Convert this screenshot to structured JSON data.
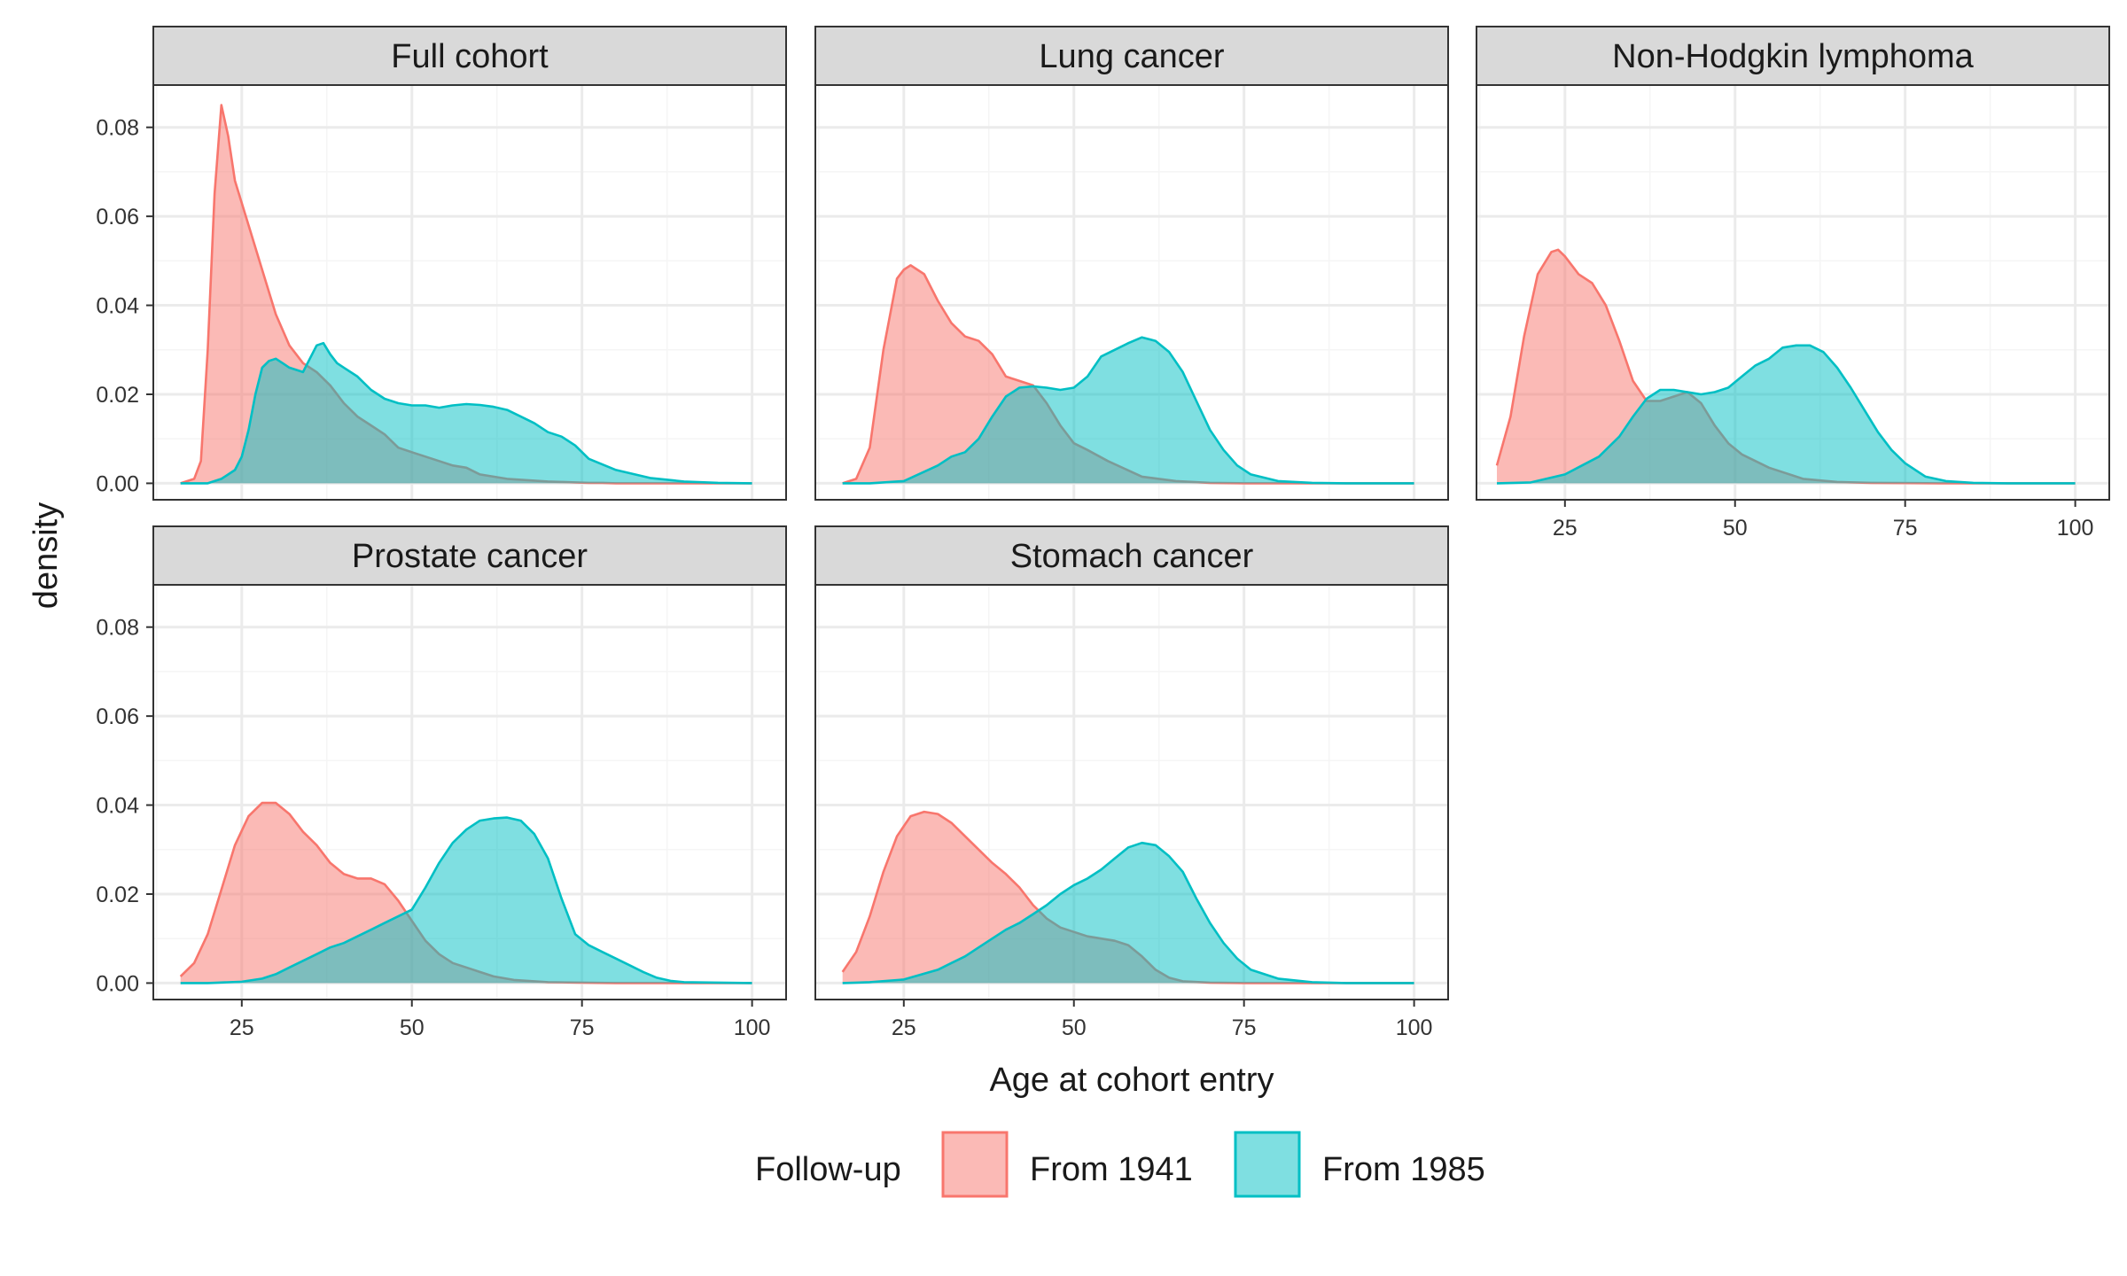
{
  "chart_data": {
    "type": "area",
    "facets": [
      {
        "title": "Full cohort",
        "series": [
          {
            "name": "From 1941",
            "x": [
              16,
              18,
              19,
              20,
              21,
              22,
              23,
              24,
              25,
              26,
              28,
              30,
              32,
              34,
              36,
              38,
              40,
              42,
              44,
              46,
              48,
              50,
              52,
              54,
              56,
              58,
              60,
              62,
              64,
              66,
              68,
              70,
              72,
              74,
              76,
              78,
              80,
              85,
              90,
              100
            ],
            "y": [
              0,
              0.001,
              0.005,
              0.03,
              0.065,
              0.085,
              0.078,
              0.068,
              0.063,
              0.058,
              0.048,
              0.038,
              0.031,
              0.027,
              0.025,
              0.022,
              0.018,
              0.015,
              0.013,
              0.011,
              0.008,
              0.007,
              0.006,
              0.005,
              0.004,
              0.0035,
              0.002,
              0.0015,
              0.001,
              0.0008,
              0.0006,
              0.0004,
              0.0003,
              0.0002,
              0.0001,
              0.0001,
              0,
              0,
              0,
              0
            ]
          },
          {
            "name": "From 1985",
            "x": [
              16,
              20,
              22,
              24,
              25,
              26,
              27,
              28,
              29,
              30,
              31,
              32,
              34,
              35,
              36,
              37,
              38,
              39,
              40,
              42,
              44,
              46,
              48,
              50,
              52,
              54,
              56,
              58,
              60,
              62,
              64,
              66,
              68,
              70,
              72,
              74,
              76,
              80,
              85,
              90,
              95,
              100
            ],
            "y": [
              0,
              0,
              0.001,
              0.003,
              0.006,
              0.012,
              0.02,
              0.026,
              0.0275,
              0.028,
              0.027,
              0.026,
              0.025,
              0.028,
              0.031,
              0.0315,
              0.029,
              0.027,
              0.026,
              0.024,
              0.021,
              0.019,
              0.018,
              0.0175,
              0.0175,
              0.017,
              0.0175,
              0.0178,
              0.0176,
              0.0172,
              0.0165,
              0.015,
              0.0135,
              0.0115,
              0.0105,
              0.0085,
              0.0055,
              0.003,
              0.0012,
              0.0004,
              0.0001,
              0
            ]
          }
        ]
      },
      {
        "title": "Lung cancer",
        "series": [
          {
            "name": "From 1941",
            "x": [
              16,
              18,
              20,
              22,
              24,
              25,
              26,
              28,
              30,
              32,
              34,
              36,
              38,
              40,
              42,
              44,
              46,
              48,
              50,
              52,
              55,
              60,
              65,
              70,
              75,
              80,
              85,
              90,
              100
            ],
            "y": [
              0,
              0.001,
              0.008,
              0.03,
              0.046,
              0.048,
              0.049,
              0.047,
              0.041,
              0.036,
              0.033,
              0.032,
              0.029,
              0.024,
              0.023,
              0.022,
              0.018,
              0.013,
              0.009,
              0.0075,
              0.005,
              0.0015,
              0.0005,
              0.0001,
              0,
              0,
              0,
              0,
              0
            ]
          },
          {
            "name": "From 1985",
            "x": [
              16,
              20,
              25,
              30,
              32,
              34,
              36,
              38,
              40,
              42,
              44,
              46,
              48,
              50,
              52,
              54,
              56,
              58,
              60,
              62,
              64,
              66,
              68,
              70,
              72,
              74,
              76,
              80,
              85,
              90,
              100
            ],
            "y": [
              0,
              0,
              0.0005,
              0.004,
              0.006,
              0.007,
              0.01,
              0.015,
              0.0195,
              0.0215,
              0.0218,
              0.0215,
              0.021,
              0.0215,
              0.024,
              0.0285,
              0.03,
              0.0315,
              0.0328,
              0.032,
              0.0295,
              0.025,
              0.0185,
              0.012,
              0.0075,
              0.004,
              0.002,
              0.0005,
              0.0001,
              0,
              0
            ]
          }
        ]
      },
      {
        "title": "Non-Hodgkin lymphoma",
        "series": [
          {
            "name": "From 1941",
            "x": [
              15,
              17,
              19,
              21,
              23,
              24,
              25,
              27,
              29,
              31,
              33,
              35,
              37,
              39,
              41,
              43,
              45,
              47,
              49,
              51,
              53,
              55,
              60,
              65,
              70,
              80,
              90,
              100
            ],
            "y": [
              0.004,
              0.015,
              0.033,
              0.047,
              0.052,
              0.0525,
              0.051,
              0.047,
              0.045,
              0.04,
              0.032,
              0.023,
              0.0185,
              0.0185,
              0.0195,
              0.0205,
              0.018,
              0.013,
              0.009,
              0.0065,
              0.005,
              0.0035,
              0.001,
              0.0003,
              0.0001,
              0,
              0,
              0
            ]
          },
          {
            "name": "From 1985",
            "x": [
              15,
              20,
              25,
              30,
              33,
              35,
              37,
              39,
              41,
              43,
              45,
              47,
              49,
              51,
              53,
              55,
              57,
              59,
              61,
              63,
              65,
              67,
              69,
              71,
              73,
              75,
              78,
              81,
              85,
              90,
              100
            ],
            "y": [
              0,
              0.0002,
              0.002,
              0.006,
              0.0105,
              0.015,
              0.019,
              0.021,
              0.021,
              0.0205,
              0.02,
              0.0205,
              0.0215,
              0.024,
              0.0265,
              0.028,
              0.0305,
              0.031,
              0.031,
              0.0295,
              0.026,
              0.0215,
              0.0165,
              0.0115,
              0.0075,
              0.0045,
              0.0015,
              0.0005,
              0.0001,
              0,
              0
            ]
          }
        ]
      },
      {
        "title": "Prostate cancer",
        "series": [
          {
            "name": "From 1941",
            "x": [
              16,
              18,
              20,
              22,
              24,
              26,
              28,
              30,
              32,
              34,
              36,
              38,
              40,
              42,
              44,
              46,
              48,
              50,
              52,
              54,
              56,
              58,
              60,
              62,
              65,
              70,
              75,
              80,
              90,
              100
            ],
            "y": [
              0.0015,
              0.0045,
              0.011,
              0.021,
              0.031,
              0.0375,
              0.0405,
              0.0405,
              0.038,
              0.034,
              0.031,
              0.027,
              0.0245,
              0.0235,
              0.0235,
              0.0222,
              0.0185,
              0.014,
              0.0095,
              0.0065,
              0.0045,
              0.0035,
              0.0025,
              0.0015,
              0.0007,
              0.0002,
              0.0001,
              0,
              0,
              0
            ]
          },
          {
            "name": "From 1985",
            "x": [
              16,
              20,
              25,
              28,
              30,
              32,
              34,
              36,
              38,
              40,
              42,
              44,
              46,
              48,
              50,
              52,
              54,
              56,
              58,
              60,
              62,
              64,
              66,
              68,
              70,
              72,
              74,
              76,
              78,
              80,
              82,
              84,
              86,
              88,
              90,
              100
            ],
            "y": [
              0,
              0,
              0.0003,
              0.001,
              0.002,
              0.0035,
              0.005,
              0.0065,
              0.008,
              0.009,
              0.0105,
              0.012,
              0.0135,
              0.015,
              0.0165,
              0.0215,
              0.027,
              0.0315,
              0.0345,
              0.0365,
              0.037,
              0.0372,
              0.0365,
              0.0335,
              0.028,
              0.019,
              0.011,
              0.0085,
              0.007,
              0.0055,
              0.004,
              0.0025,
              0.0012,
              0.0005,
              0.0002,
              0
            ]
          }
        ]
      },
      {
        "title": "Stomach cancer",
        "series": [
          {
            "name": "From 1941",
            "x": [
              16,
              18,
              20,
              22,
              24,
              26,
              28,
              30,
              32,
              34,
              36,
              38,
              40,
              42,
              44,
              46,
              48,
              50,
              52,
              54,
              56,
              58,
              60,
              62,
              64,
              66,
              70,
              75,
              80,
              90,
              100
            ],
            "y": [
              0.0025,
              0.007,
              0.015,
              0.025,
              0.033,
              0.0375,
              0.0385,
              0.038,
              0.036,
              0.033,
              0.03,
              0.027,
              0.0245,
              0.0215,
              0.0175,
              0.0145,
              0.0125,
              0.0115,
              0.0105,
              0.01,
              0.0095,
              0.0085,
              0.006,
              0.003,
              0.0012,
              0.0004,
              0.0001,
              0,
              0,
              0,
              0
            ]
          },
          {
            "name": "From 1985",
            "x": [
              16,
              20,
              25,
              30,
              32,
              34,
              36,
              38,
              40,
              42,
              44,
              46,
              48,
              50,
              52,
              54,
              56,
              58,
              60,
              62,
              64,
              66,
              68,
              70,
              72,
              74,
              76,
              80,
              85,
              90,
              100
            ],
            "y": [
              0,
              0.0002,
              0.0008,
              0.003,
              0.0045,
              0.006,
              0.008,
              0.01,
              0.012,
              0.0135,
              0.0155,
              0.0175,
              0.02,
              0.022,
              0.0235,
              0.0255,
              0.028,
              0.0305,
              0.0315,
              0.031,
              0.0285,
              0.025,
              0.019,
              0.0135,
              0.009,
              0.0055,
              0.003,
              0.001,
              0.0002,
              0,
              0
            ]
          }
        ]
      }
    ],
    "x_range": [
      12,
      105
    ],
    "y_range": [
      -0.0037,
      0.0895
    ],
    "x_ticks": [
      25,
      50,
      75,
      100
    ],
    "y_ticks": [
      "0.00",
      "0.02",
      "0.04",
      "0.06",
      "0.08"
    ],
    "y_tick_values": [
      0,
      0.02,
      0.04,
      0.06,
      0.08
    ],
    "xlabel": "Age at cohort entry",
    "ylabel": "density",
    "legend": {
      "title": "Follow-up",
      "position": "bottom",
      "entries": [
        {
          "name": "From 1941",
          "fill": "#F8766D"
        },
        {
          "name": "From 1985",
          "fill": "#00BFC4"
        }
      ]
    },
    "grid": true,
    "colors": {
      "series_1941": "#F8766D",
      "series_1985": "#00BFC4",
      "strip_fill": "#D9D9D9",
      "panel_border": "#333333",
      "grid_major": "#EBEBEB",
      "grid_minor": "#F5F5F5"
    }
  }
}
